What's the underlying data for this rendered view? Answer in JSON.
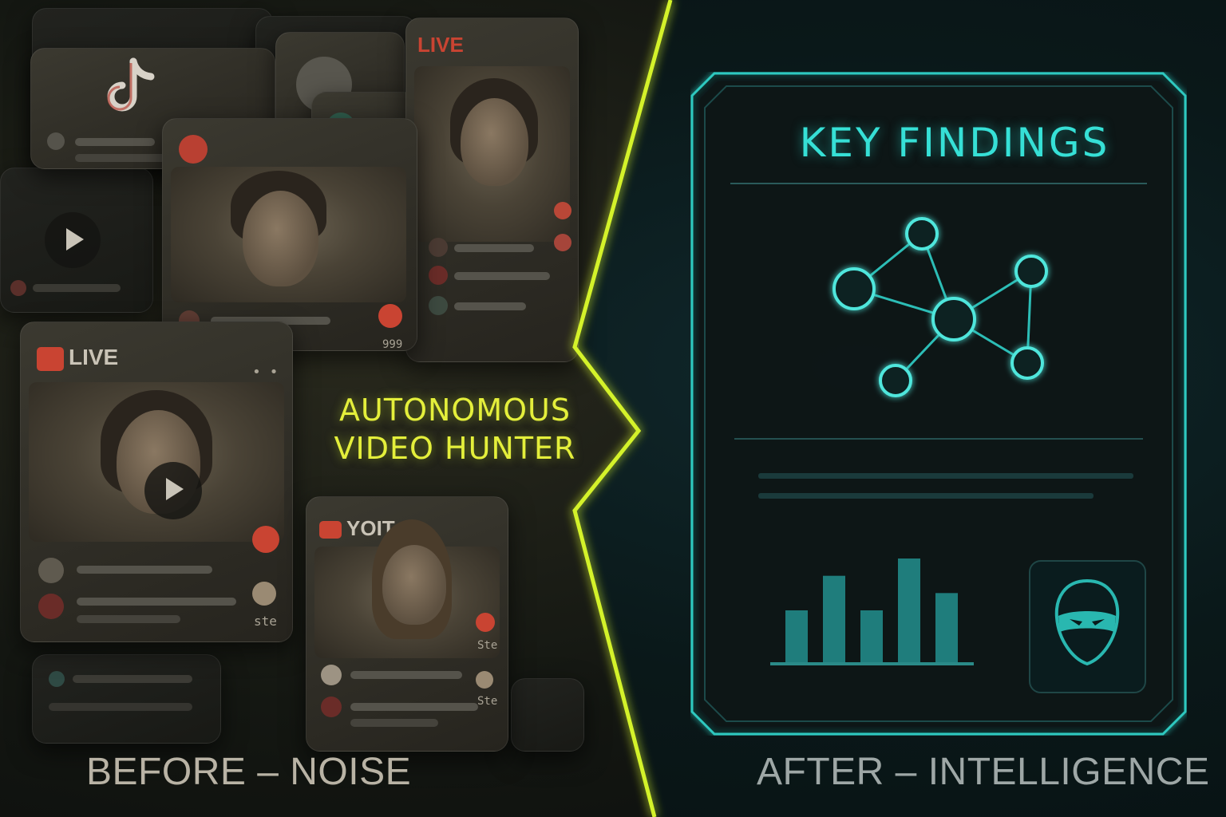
{
  "left": {
    "title_line1": "AUTONOMOUS",
    "title_line2": "VIDEO HUNTER",
    "caption": "BEFORE – NOISE",
    "live_label": "LIVE",
    "live_label_top": "LIVE",
    "yt_label": "YOIT",
    "card_texts": [
      "Ste",
      "ste",
      "Ste",
      "999"
    ]
  },
  "right": {
    "panel_title": "KEY FINDINGS",
    "caption": "AFTER – INTELLIGENCE",
    "bar_values": [
      3,
      5,
      3,
      6,
      4
    ],
    "network_icon": "network-graph-icon",
    "mask_icon": "masked-face-icon"
  },
  "colors": {
    "accent_left": "#e4ef3b",
    "accent_right": "#36e0d6",
    "divider": "#d4f22a",
    "live_red": "#c94432"
  }
}
